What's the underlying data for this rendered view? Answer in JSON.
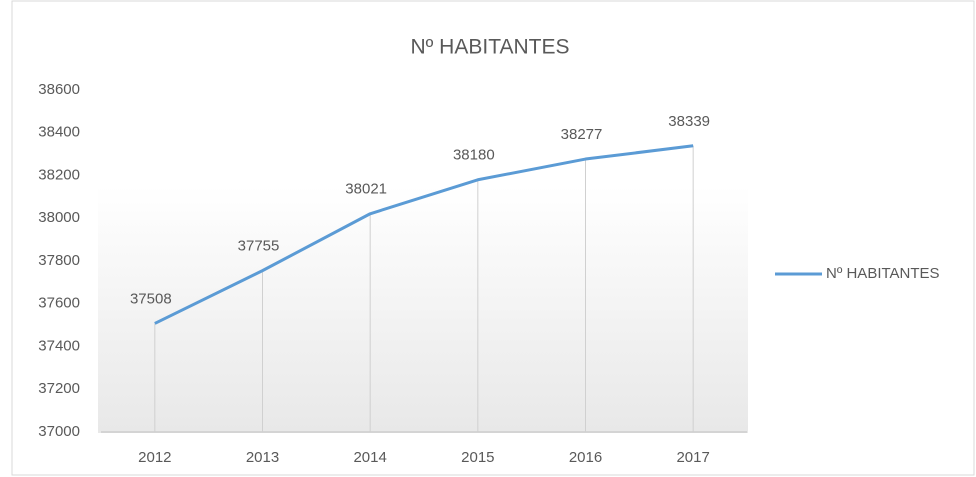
{
  "chart_data": {
    "type": "line",
    "title": "Nº HABITANTES",
    "categories": [
      "2012",
      "2013",
      "2014",
      "2015",
      "2016",
      "2017"
    ],
    "series": [
      {
        "name": "Nº HABITANTES",
        "color": "#5b9bd5",
        "values": [
          37508,
          37755,
          38021,
          38180,
          38277,
          38339
        ]
      }
    ],
    "ylim": [
      37000,
      38600
    ],
    "yticks": [
      37000,
      37200,
      37400,
      37600,
      37800,
      38000,
      38200,
      38400,
      38600
    ],
    "legend": "right",
    "data_labels": true,
    "drop_lines": true
  }
}
